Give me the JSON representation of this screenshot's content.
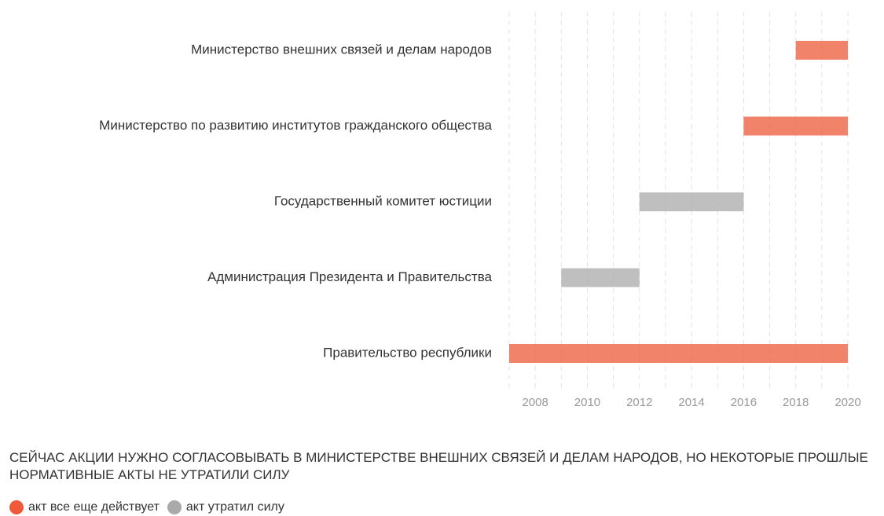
{
  "chart_data": {
    "type": "range-bar",
    "title": "СЕЙЧАС АКЦИИ НУЖНО СОГЛАСОВЫВАТЬ В МИНИСТЕРСТВЕ ВНЕШНИХ СВЯЗЕЙ И ДЕЛАМ НАРОДОВ, НО НЕКОТОРЫЕ ПРОШЛЫЕ НОРМАТИВНЫЕ АКТЫ НЕ УТРАТИЛИ СИЛУ",
    "series": [
      {
        "name": "акт все еще действует",
        "color": "#ee5a3a"
      },
      {
        "name": "акт утратил силу",
        "color": "#aaaaaa"
      }
    ],
    "bars": [
      {
        "category": "Министерство внешних связей и делам народов",
        "start": 2018,
        "end": 2020,
        "series": 0
      },
      {
        "category": "Министерство по развитию институтов гражданского общества",
        "start": 2016,
        "end": 2020,
        "series": 0
      },
      {
        "category": "Государственный комитет юстиции",
        "start": 2012,
        "end": 2016,
        "series": 1
      },
      {
        "category": "Администрация Президента и Правительства",
        "start": 2009,
        "end": 2012,
        "series": 1
      },
      {
        "category": "Правительство республики",
        "start": 2007,
        "end": 2020,
        "series": 0
      }
    ],
    "xlim": [
      2007,
      2020
    ],
    "xticks": [
      2008,
      2010,
      2012,
      2014,
      2016,
      2018,
      2020
    ],
    "xgrid": [
      2007,
      2008,
      2009,
      2010,
      2011,
      2012,
      2013,
      2014,
      2015,
      2016,
      2017,
      2018,
      2019,
      2020
    ],
    "grid": true
  }
}
